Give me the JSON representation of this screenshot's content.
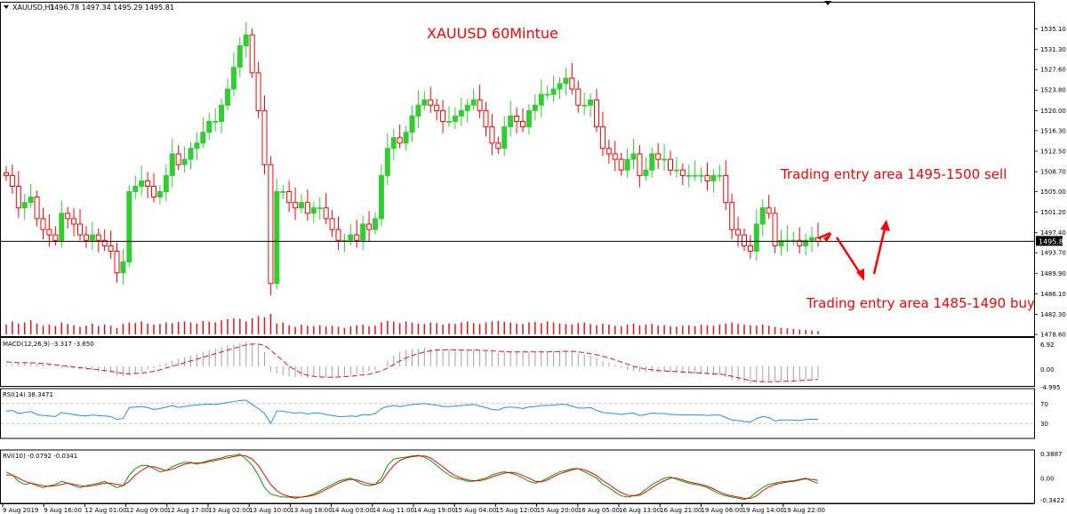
{
  "window": {
    "symbol_label": "XAUUSD,H1",
    "ohlc_label": "1496.78 1497.34 1495.29 1495.81",
    "menu_icon": "triangle-down-icon",
    "shift_marker_icon": "triangle-down-icon"
  },
  "annotations": {
    "title": "XAUUSD 60Mintue",
    "sell_text": "Trading entry area 1495-1500 sell",
    "buy_text": "Trading entry area 1485-1490 buy",
    "color": "#ff0000"
  },
  "colors": {
    "bull": "#32cd32",
    "bear": "#ff0000",
    "volume": "#e4141b",
    "macd_hist": "#a0a0a0",
    "macd_signal": "#e4141b",
    "rsi_line": "#1e90ff",
    "rvi_main": "#00a000",
    "rvi_signal": "#ff0000",
    "grid": "#e9e9e9",
    "price_line": "#000000",
    "price_tag_bg": "#000000",
    "price_tag_fg": "#ffffff"
  },
  "chart_data": [
    {
      "type": "candlestick",
      "title": "XAUUSD,H1",
      "current_price": 1495.81,
      "ylim": [
        1478.6,
        1538.0
      ],
      "y_ticks": [
        "1535.10",
        "1531.30",
        "1527.60",
        "1523.80",
        "1520.00",
        "1516.30",
        "1512.50",
        "1508.70",
        "1505.00",
        "1501.20",
        "1497.40",
        "1493.70",
        "1489.90",
        "1486.10",
        "1482.30",
        "1478.60"
      ],
      "price_tag": "1495.81",
      "x_tick_labels": [
        "9 Aug 2019",
        "9 Aug 16:00",
        "12 Aug 01:00",
        "12 Aug 09:00",
        "12 Aug 17:00",
        "13 Aug 02:00",
        "13 Aug 10:00",
        "13 Aug 18:00",
        "14 Aug 03:00",
        "14 Aug 11:00",
        "14 Aug 19:00",
        "15 Aug 04:00",
        "15 Aug 12:00",
        "15 Aug 20:00",
        "16 Aug 05:00",
        "16 Aug 13:00",
        "16 Aug 21:00",
        "19 Aug 06:00",
        "19 Aug 14:00",
        "19 Aug 22:00"
      ],
      "closes": [
        1508,
        1506,
        1502,
        1503,
        1504,
        1500,
        1498,
        1497,
        1496,
        1501,
        1500,
        1499,
        1497,
        1496,
        1497,
        1496,
        1495,
        1494,
        1490,
        1492,
        1505,
        1506,
        1507,
        1506,
        1504,
        1505,
        1508,
        1512,
        1510,
        1511,
        1513,
        1514,
        1516,
        1518,
        1518,
        1521,
        1524,
        1528,
        1532,
        1534,
        1527,
        1520,
        1510,
        1488,
        1505,
        1505,
        1503,
        1502,
        1503,
        1501,
        1502,
        1502,
        1500,
        1498,
        1496,
        1496,
        1497,
        1496,
        1499,
        1498,
        1500,
        1508,
        1513,
        1515,
        1514,
        1516,
        1519,
        1521,
        1522,
        1521,
        1520,
        1518,
        1518,
        1519,
        1520,
        1521,
        1522,
        1520,
        1517,
        1514,
        1513,
        1517,
        1519,
        1518,
        1517,
        1520,
        1521,
        1523,
        1523,
        1524,
        1525,
        1526,
        1524,
        1521,
        1521,
        1522,
        1517,
        1513,
        1512,
        1511,
        1509,
        1511,
        1512,
        1508,
        1509,
        1512,
        1511,
        1511,
        1509,
        1509,
        1508,
        1508,
        1508,
        1508,
        1507,
        1508,
        1508,
        1503,
        1498,
        1497,
        1495,
        1494,
        1499,
        1502,
        1501,
        1495,
        1496,
        1496,
        1496,
        1495,
        1496,
        1496.5,
        1495.81
      ],
      "volume_ylim": [
        0,
        100
      ],
      "volumes": [
        45,
        60,
        50,
        55,
        65,
        50,
        40,
        45,
        38,
        55,
        48,
        42,
        35,
        40,
        50,
        38,
        45,
        40,
        30,
        48,
        55,
        52,
        60,
        50,
        45,
        48,
        55,
        52,
        58,
        60,
        55,
        50,
        62,
        58,
        55,
        65,
        70,
        75,
        72,
        60,
        75,
        85,
        80,
        95,
        50,
        55,
        42,
        35,
        45,
        40,
        38,
        42,
        36,
        40,
        35,
        30,
        38,
        42,
        45,
        38,
        40,
        55,
        62,
        58,
        52,
        60,
        55,
        50,
        48,
        55,
        52,
        45,
        50,
        48,
        55,
        60,
        52,
        48,
        55,
        60,
        62,
        58,
        55,
        50,
        48,
        55,
        58,
        52,
        60,
        55,
        50,
        48,
        45,
        52,
        55,
        48,
        42,
        50,
        45,
        40,
        38,
        45,
        50,
        42,
        45,
        48,
        40,
        42,
        38,
        35,
        40,
        42,
        38,
        45,
        42,
        40,
        45,
        50,
        55,
        48,
        45,
        42,
        40,
        45,
        40,
        35,
        30,
        28,
        25,
        22,
        20,
        18,
        15
      ],
      "macd_label": "MACD(12,26,9) -3.317 -3.650",
      "macd_ylim": [
        -4.995,
        6.92
      ],
      "macd_ticks": [
        "6.92",
        "0.00",
        "-4.995"
      ],
      "macd_hist": [
        0.5,
        0.8,
        1.0,
        1.2,
        1.0,
        0.8,
        0.6,
        0.4,
        0.0,
        -0.5,
        -0.5,
        -0.6,
        -0.8,
        -1.0,
        -1.2,
        -1.4,
        -1.5,
        -1.8,
        -2.5,
        -2.8,
        -2.6,
        -2.0,
        -1.5,
        -1.0,
        -0.5,
        0.5,
        1.0,
        1.5,
        2.0,
        2.5,
        3.0,
        3.5,
        4.0,
        4.5,
        5.0,
        5.5,
        5.8,
        6.0,
        6.5,
        6.9,
        6.5,
        6.0,
        4.0,
        -1.5,
        -2.0,
        -2.5,
        -2.8,
        -3.0,
        -3.0,
        -3.2,
        -3.0,
        -3.2,
        -3.0,
        -3.0,
        -2.8,
        -2.6,
        -2.4,
        -2.2,
        -1.8,
        -1.5,
        -1.0,
        0.0,
        1.5,
        3.0,
        4.0,
        4.5,
        4.8,
        5.0,
        5.2,
        5.0,
        5.0,
        4.8,
        4.6,
        4.5,
        4.4,
        4.5,
        4.6,
        4.4,
        4.2,
        4.0,
        3.8,
        3.9,
        4.0,
        4.0,
        3.8,
        3.9,
        4.0,
        4.1,
        4.2,
        4.2,
        4.2,
        4.3,
        4.0,
        3.5,
        3.2,
        3.0,
        2.5,
        1.5,
        1.0,
        0.5,
        -0.5,
        -1.0,
        -1.2,
        -1.5,
        -1.8,
        -1.6,
        -1.5,
        -1.5,
        -1.7,
        -1.8,
        -2.0,
        -2.0,
        -2.1,
        -2.1,
        -2.2,
        -2.2,
        -2.3,
        -3.0,
        -3.8,
        -4.2,
        -4.5,
        -4.8,
        -4.6,
        -4.2,
        -4.0,
        -4.3,
        -4.2,
        -4.1,
        -4.0,
        -3.9,
        -3.7,
        -3.5,
        -3.317
      ],
      "macd_signal": [
        1.2,
        1.1,
        1.0,
        1.0,
        1.0,
        0.9,
        0.8,
        0.6,
        0.4,
        0.2,
        0.0,
        -0.2,
        -0.4,
        -0.6,
        -0.8,
        -1.0,
        -1.2,
        -1.4,
        -1.7,
        -2.0,
        -2.1,
        -2.0,
        -1.9,
        -1.7,
        -1.4,
        -1.0,
        -0.5,
        0.0,
        0.5,
        1.0,
        1.5,
        2.0,
        2.5,
        3.0,
        3.5,
        4.0,
        4.5,
        5.0,
        5.5,
        6.0,
        6.2,
        6.2,
        5.8,
        4.5,
        3.0,
        1.5,
        0.0,
        -1.0,
        -2.0,
        -2.5,
        -2.8,
        -3.0,
        -3.0,
        -3.1,
        -3.0,
        -2.9,
        -2.8,
        -2.6,
        -2.4,
        -2.2,
        -1.8,
        -1.3,
        -0.5,
        0.5,
        1.5,
        2.3,
        3.0,
        3.5,
        4.0,
        4.3,
        4.5,
        4.6,
        4.6,
        4.6,
        4.5,
        4.5,
        4.5,
        4.5,
        4.4,
        4.3,
        4.2,
        4.1,
        4.0,
        4.0,
        4.0,
        4.0,
        4.0,
        4.0,
        4.0,
        4.1,
        4.1,
        4.2,
        4.2,
        4.0,
        3.8,
        3.5,
        3.2,
        2.8,
        2.3,
        1.8,
        1.2,
        0.6,
        0.0,
        -0.4,
        -0.8,
        -1.0,
        -1.2,
        -1.3,
        -1.4,
        -1.5,
        -1.6,
        -1.7,
        -1.8,
        -1.9,
        -2.0,
        -2.1,
        -2.2,
        -2.4,
        -2.8,
        -3.2,
        -3.6,
        -4.0,
        -4.2,
        -4.3,
        -4.3,
        -4.3,
        -4.2,
        -4.2,
        -4.1,
        -4.0,
        -3.9,
        -3.8,
        -3.65
      ],
      "rsi_label": "RSI(14) 38.3471",
      "rsi_ylim": [
        0,
        100
      ],
      "rsi_ticks": [
        "70",
        "30"
      ],
      "rsi": [
        55,
        56,
        50,
        52,
        54,
        48,
        46,
        45,
        44,
        52,
        50,
        48,
        46,
        45,
        47,
        46,
        45,
        44,
        38,
        40,
        62,
        63,
        64,
        62,
        58,
        60,
        63,
        66,
        62,
        64,
        66,
        67,
        68,
        69,
        68,
        70,
        72,
        74,
        76,
        77,
        68,
        60,
        50,
        30,
        55,
        55,
        52,
        51,
        52,
        49,
        51,
        51,
        48,
        46,
        44,
        44,
        45,
        44,
        48,
        47,
        50,
        60,
        64,
        66,
        64,
        66,
        68,
        69,
        70,
        68,
        67,
        64,
        64,
        65,
        66,
        67,
        68,
        65,
        62,
        58,
        57,
        62,
        63,
        62,
        60,
        63,
        64,
        66,
        66,
        67,
        68,
        68,
        65,
        61,
        61,
        62,
        56,
        52,
        51,
        50,
        48,
        50,
        51,
        46,
        48,
        51,
        50,
        50,
        48,
        48,
        47,
        47,
        47,
        47,
        46,
        47,
        47,
        42,
        37,
        36,
        34,
        33,
        40,
        44,
        42,
        35,
        37,
        37,
        37,
        36,
        38,
        38.5,
        38.35
      ],
      "rvi_label": "RVI(10) -0.0792 -0.0341",
      "rvi_ylim": [
        -0.3422,
        0.3887
      ],
      "rvi_ticks": [
        "0.3887",
        "0.00",
        "-0.3422"
      ],
      "rvi_main": [
        0.1,
        0.05,
        -0.05,
        -0.1,
        -0.08,
        -0.12,
        -0.15,
        -0.12,
        -0.1,
        -0.05,
        -0.08,
        -0.12,
        -0.15,
        -0.12,
        -0.1,
        -0.08,
        -0.05,
        -0.1,
        -0.15,
        -0.12,
        0.05,
        0.15,
        0.2,
        0.2,
        0.15,
        0.1,
        0.12,
        0.18,
        0.22,
        0.25,
        0.25,
        0.22,
        0.25,
        0.28,
        0.3,
        0.32,
        0.35,
        0.36,
        0.38,
        0.3,
        0.2,
        0.05,
        -0.15,
        -0.25,
        -0.28,
        -0.3,
        -0.3,
        -0.32,
        -0.3,
        -0.28,
        -0.25,
        -0.2,
        -0.15,
        -0.1,
        -0.05,
        -0.02,
        0.0,
        -0.05,
        -0.1,
        -0.12,
        -0.1,
        0.0,
        0.2,
        0.3,
        0.32,
        0.33,
        0.35,
        0.36,
        0.33,
        0.28,
        0.2,
        0.12,
        0.05,
        0.0,
        -0.02,
        -0.05,
        -0.05,
        -0.02,
        0.0,
        0.05,
        0.08,
        0.1,
        0.08,
        0.05,
        0.0,
        -0.05,
        -0.08,
        -0.05,
        0.0,
        0.05,
        0.1,
        0.12,
        0.15,
        0.15,
        0.1,
        0.05,
        0.0,
        -0.1,
        -0.15,
        -0.22,
        -0.28,
        -0.3,
        -0.28,
        -0.25,
        -0.18,
        -0.1,
        -0.05,
        0.0,
        0.02,
        -0.02,
        -0.05,
        -0.08,
        -0.1,
        -0.12,
        -0.15,
        -0.2,
        -0.25,
        -0.28,
        -0.3,
        -0.32,
        -0.34,
        -0.3,
        -0.22,
        -0.15,
        -0.1,
        -0.08,
        -0.06,
        -0.05,
        -0.04,
        -0.02,
        0.0,
        -0.05,
        -0.0792
      ],
      "rvi_signal": [
        0.05,
        0.05,
        0.0,
        -0.05,
        -0.08,
        -0.1,
        -0.12,
        -0.13,
        -0.12,
        -0.1,
        -0.08,
        -0.1,
        -0.12,
        -0.13,
        -0.12,
        -0.1,
        -0.08,
        -0.08,
        -0.1,
        -0.12,
        -0.05,
        0.05,
        0.12,
        0.18,
        0.18,
        0.15,
        0.12,
        0.14,
        0.18,
        0.22,
        0.24,
        0.24,
        0.24,
        0.26,
        0.28,
        0.3,
        0.32,
        0.34,
        0.36,
        0.35,
        0.3,
        0.2,
        0.05,
        -0.1,
        -0.2,
        -0.26,
        -0.29,
        -0.3,
        -0.3,
        -0.29,
        -0.27,
        -0.23,
        -0.18,
        -0.13,
        -0.08,
        -0.04,
        -0.02,
        -0.03,
        -0.06,
        -0.09,
        -0.1,
        -0.06,
        0.08,
        0.2,
        0.28,
        0.32,
        0.34,
        0.35,
        0.35,
        0.32,
        0.25,
        0.18,
        0.1,
        0.04,
        0.0,
        -0.03,
        -0.04,
        -0.04,
        -0.02,
        0.02,
        0.05,
        0.08,
        0.09,
        0.08,
        0.04,
        0.0,
        -0.05,
        -0.06,
        -0.03,
        0.02,
        0.07,
        0.1,
        0.13,
        0.15,
        0.13,
        0.09,
        0.04,
        -0.04,
        -0.1,
        -0.17,
        -0.23,
        -0.27,
        -0.28,
        -0.27,
        -0.22,
        -0.15,
        -0.09,
        -0.04,
        0.0,
        0.0,
        -0.03,
        -0.06,
        -0.08,
        -0.1,
        -0.13,
        -0.17,
        -0.22,
        -0.26,
        -0.28,
        -0.3,
        -0.32,
        -0.32,
        -0.28,
        -0.2,
        -0.14,
        -0.1,
        -0.08,
        -0.06,
        -0.05,
        -0.03,
        -0.01,
        -0.02,
        -0.0341
      ]
    }
  ]
}
